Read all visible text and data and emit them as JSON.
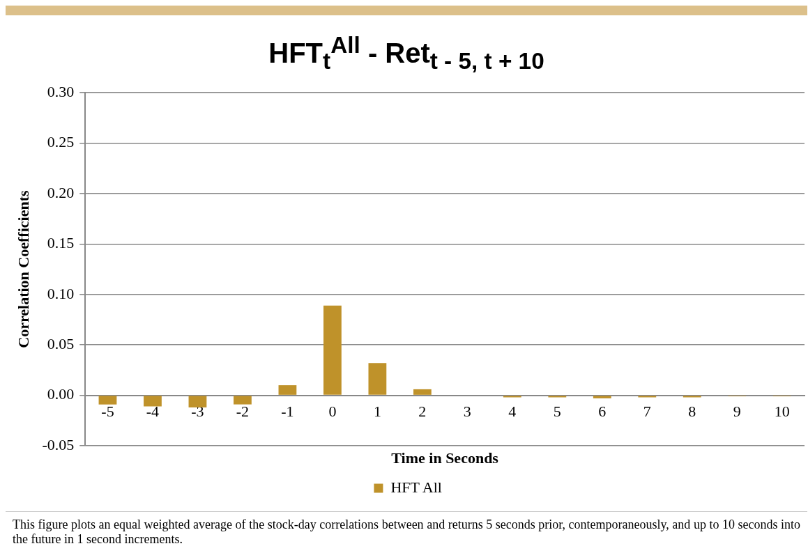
{
  "chart_data": {
    "type": "bar",
    "title": "HFT$_{t}$$^{All}$ - Ret$_{t - 5, t + 10}$",
    "xlabel": "Time in Seconds",
    "ylabel": "Correlation Coefficients",
    "categories": [
      "-5",
      "-4",
      "-3",
      "-2",
      "-1",
      "0",
      "1",
      "2",
      "3",
      "4",
      "5",
      "6",
      "7",
      "8",
      "9",
      "10"
    ],
    "series": [
      {
        "name": "HFT All",
        "color": "#bf922a",
        "values": [
          -0.009,
          -0.011,
          -0.012,
          -0.009,
          0.01,
          0.089,
          0.032,
          0.006,
          0.0,
          -0.002,
          -0.002,
          -0.003,
          -0.002,
          -0.002,
          -0.001,
          -0.001
        ]
      }
    ],
    "ylim": [
      -0.05,
      0.3
    ],
    "yticks": [
      -0.05,
      {
        "value": 0,
        "label": "0.00"
      },
      0.05,
      {
        "value": 0.1,
        "label": "0.10"
      },
      0.15,
      {
        "value": 0.2,
        "label": "0.20"
      },
      0.25,
      {
        "value": 0.3,
        "label": "0.30"
      }
    ],
    "grid": "y",
    "legend": "bottom",
    "annotations": [
      "This figure plots an equal weighted average of the stock-day correlations between and returns 5 seconds prior, contemporaneously, and up to 10 seconds into the future in 1 second increments."
    ]
  }
}
